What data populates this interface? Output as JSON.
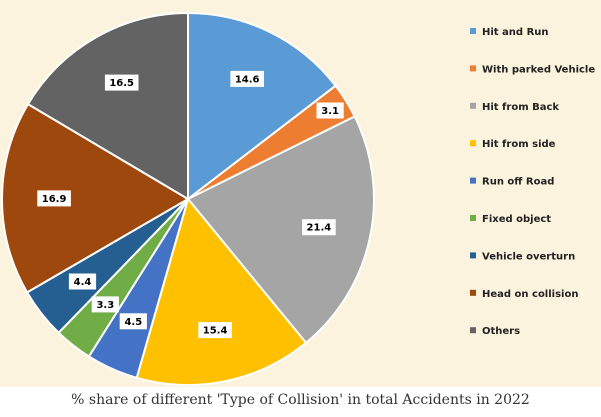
{
  "chart_data": {
    "type": "pie",
    "title": "",
    "caption": "% share of different 'Type of Collision' in total Accidents in 2022",
    "legend_position": "right",
    "start_angle_deg": 0,
    "direction": "clockwise",
    "slices": [
      {
        "label": "Hit and Run",
        "value": 14.6,
        "display": "14.6",
        "color": "#5b9bd5"
      },
      {
        "label": "With parked Vehicle",
        "value": 3.1,
        "display": "3.1",
        "color": "#ed7d31"
      },
      {
        "label": "Hit from Back",
        "value": 21.4,
        "display": "21.4",
        "color": "#a5a5a5"
      },
      {
        "label": "Hit from side",
        "value": 15.4,
        "display": "15.4",
        "color": "#ffc000"
      },
      {
        "label": "Run off Road",
        "value": 4.5,
        "display": "4.5",
        "color": "#4472c4"
      },
      {
        "label": "Fixed object",
        "value": 3.3,
        "display": "3.3",
        "color": "#70ad47"
      },
      {
        "label": "Vehicle overturn",
        "value": 4.4,
        "display": "4.4",
        "color": "#255e91"
      },
      {
        "label": "Head on collision",
        "value": 16.9,
        "display": "16.9",
        "color": "#9e480e"
      },
      {
        "label": "Others",
        "value": 16.5,
        "display": "16.5",
        "color": "#636363"
      }
    ]
  }
}
